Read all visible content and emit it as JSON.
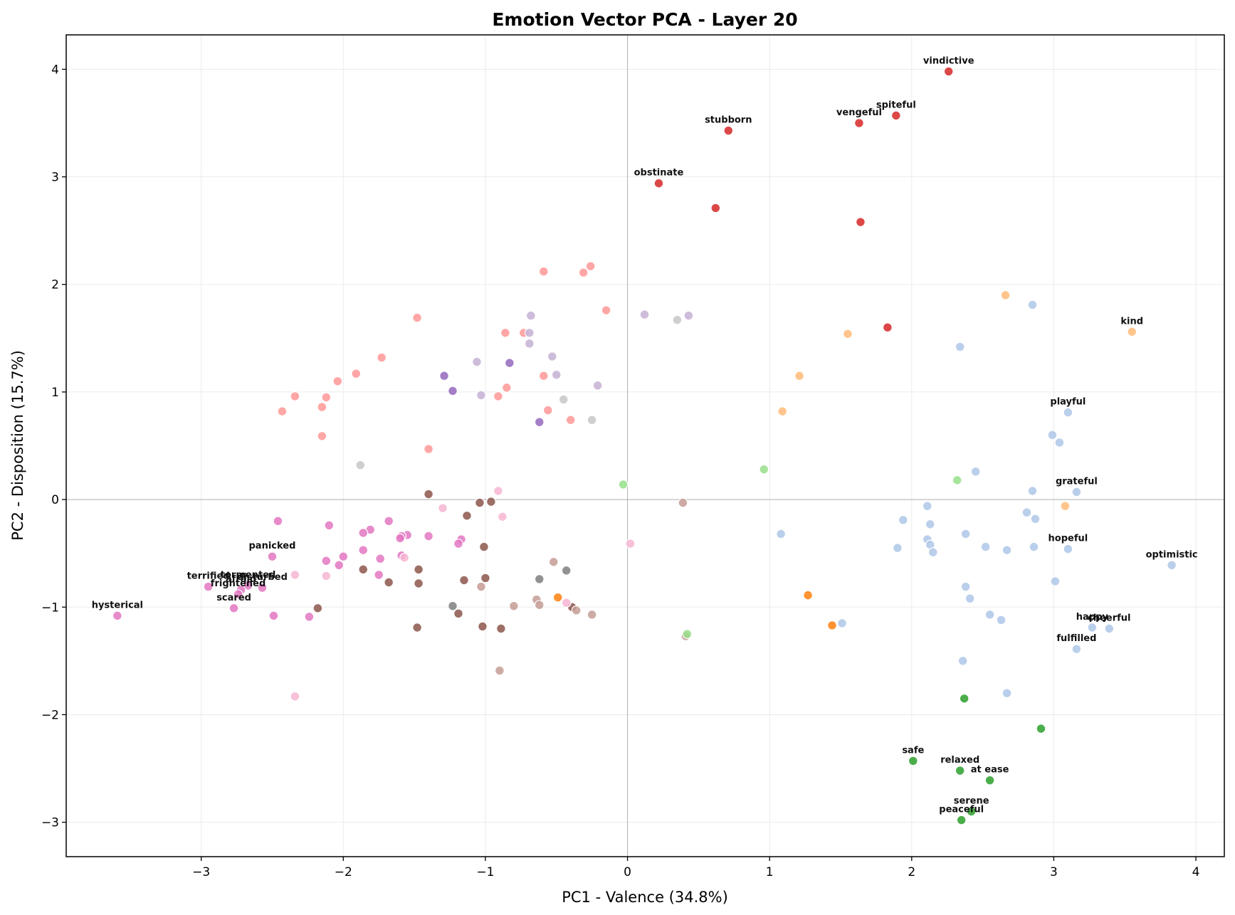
{
  "chart_data": {
    "type": "scatter",
    "title": "Emotion Vector PCA - Layer 20",
    "xlabel": "PC1 - Valence (34.8%)",
    "ylabel": "PC2 - Disposition (15.7%)",
    "xlim": [
      -3.95,
      4.2
    ],
    "ylim": [
      -3.32,
      4.32
    ],
    "xticks": [
      -3,
      -2,
      -1,
      0,
      1,
      2,
      3,
      4
    ],
    "yticks": [
      -3,
      -2,
      -1,
      0,
      1,
      2,
      3,
      4
    ],
    "xtick_labels": [
      "−3",
      "−2",
      "−1",
      "0",
      "1",
      "2",
      "3",
      "4"
    ],
    "ytick_labels": [
      "−3",
      "−2",
      "−1",
      "0",
      "1",
      "2",
      "3",
      "4"
    ],
    "grid": true,
    "colors": {
      "red": "#d62728",
      "salmon": "#ff9896",
      "purple": "#9467bd",
      "lavender": "#c5b0d5",
      "lightgray": "#c7c7c7",
      "gray": "#7f7f7f",
      "brown": "#8c564b",
      "tan": "#c49c94",
      "magenta": "#e377c2",
      "pink": "#f7b6d2",
      "orange": "#ff7f0e",
      "peach": "#ffbb78",
      "lightgreen": "#98df8a",
      "green": "#2ca02c",
      "lightblue": "#aec7e8"
    },
    "points": [
      {
        "x": 2.26,
        "y": 3.98,
        "c": "red",
        "label": "vindictive"
      },
      {
        "x": 1.63,
        "y": 3.5,
        "c": "red",
        "label": "vengeful"
      },
      {
        "x": 1.89,
        "y": 3.57,
        "c": "red",
        "label": "spiteful"
      },
      {
        "x": 0.71,
        "y": 3.43,
        "c": "red",
        "label": "stubborn"
      },
      {
        "x": 0.22,
        "y": 2.94,
        "c": "red",
        "label": "obstinate"
      },
      {
        "x": 0.62,
        "y": 2.71,
        "c": "red"
      },
      {
        "x": 1.64,
        "y": 2.58,
        "c": "red"
      },
      {
        "x": 1.83,
        "y": 1.6,
        "c": "red"
      },
      {
        "x": -0.59,
        "y": 2.12,
        "c": "salmon"
      },
      {
        "x": -0.31,
        "y": 2.11,
        "c": "salmon"
      },
      {
        "x": -0.26,
        "y": 2.17,
        "c": "salmon"
      },
      {
        "x": -0.15,
        "y": 1.76,
        "c": "salmon"
      },
      {
        "x": -1.48,
        "y": 1.69,
        "c": "salmon"
      },
      {
        "x": -0.86,
        "y": 1.55,
        "c": "salmon"
      },
      {
        "x": -0.73,
        "y": 1.55,
        "c": "salmon"
      },
      {
        "x": -1.73,
        "y": 1.32,
        "c": "salmon"
      },
      {
        "x": -1.91,
        "y": 1.17,
        "c": "salmon"
      },
      {
        "x": -2.04,
        "y": 1.1,
        "c": "salmon"
      },
      {
        "x": -2.34,
        "y": 0.96,
        "c": "salmon"
      },
      {
        "x": -2.12,
        "y": 0.95,
        "c": "salmon"
      },
      {
        "x": -2.15,
        "y": 0.86,
        "c": "salmon"
      },
      {
        "x": -2.43,
        "y": 0.82,
        "c": "salmon"
      },
      {
        "x": -2.15,
        "y": 0.59,
        "c": "salmon"
      },
      {
        "x": -1.4,
        "y": 0.47,
        "c": "salmon"
      },
      {
        "x": -0.59,
        "y": 1.15,
        "c": "salmon"
      },
      {
        "x": -0.85,
        "y": 1.04,
        "c": "salmon"
      },
      {
        "x": -0.91,
        "y": 0.96,
        "c": "salmon"
      },
      {
        "x": -0.56,
        "y": 0.83,
        "c": "salmon"
      },
      {
        "x": -0.4,
        "y": 0.74,
        "c": "salmon"
      },
      {
        "x": -1.29,
        "y": 1.15,
        "c": "purple"
      },
      {
        "x": -1.23,
        "y": 1.01,
        "c": "purple"
      },
      {
        "x": -0.83,
        "y": 1.27,
        "c": "purple"
      },
      {
        "x": -0.62,
        "y": 0.72,
        "c": "purple"
      },
      {
        "x": -0.68,
        "y": 1.71,
        "c": "lavender"
      },
      {
        "x": -0.69,
        "y": 1.55,
        "c": "lavender"
      },
      {
        "x": -0.69,
        "y": 1.45,
        "c": "lavender"
      },
      {
        "x": -0.53,
        "y": 1.33,
        "c": "lavender"
      },
      {
        "x": -0.5,
        "y": 1.16,
        "c": "lavender"
      },
      {
        "x": -1.06,
        "y": 1.28,
        "c": "lavender"
      },
      {
        "x": -1.03,
        "y": 0.97,
        "c": "lavender"
      },
      {
        "x": -0.21,
        "y": 1.06,
        "c": "lavender"
      },
      {
        "x": 0.12,
        "y": 1.72,
        "c": "lavender"
      },
      {
        "x": 0.43,
        "y": 1.71,
        "c": "lavender"
      },
      {
        "x": 0.35,
        "y": 1.67,
        "c": "lightgray"
      },
      {
        "x": -0.45,
        "y": 0.93,
        "c": "lightgray"
      },
      {
        "x": -0.25,
        "y": 0.74,
        "c": "lightgray"
      },
      {
        "x": -1.88,
        "y": 0.32,
        "c": "lightgray"
      },
      {
        "x": -0.62,
        "y": -0.74,
        "c": "gray"
      },
      {
        "x": -0.43,
        "y": -0.66,
        "c": "gray"
      },
      {
        "x": -1.23,
        "y": -0.99,
        "c": "gray"
      },
      {
        "x": -1.4,
        "y": 0.05,
        "c": "brown"
      },
      {
        "x": -1.04,
        "y": -0.03,
        "c": "brown"
      },
      {
        "x": -0.96,
        "y": -0.02,
        "c": "brown"
      },
      {
        "x": -1.13,
        "y": -0.15,
        "c": "brown"
      },
      {
        "x": -1.01,
        "y": -0.44,
        "c": "brown"
      },
      {
        "x": -1.86,
        "y": -0.65,
        "c": "brown"
      },
      {
        "x": -1.47,
        "y": -0.65,
        "c": "brown"
      },
      {
        "x": -1.68,
        "y": -0.77,
        "c": "brown"
      },
      {
        "x": -1.47,
        "y": -0.78,
        "c": "brown"
      },
      {
        "x": -1.15,
        "y": -0.75,
        "c": "brown"
      },
      {
        "x": -1.0,
        "y": -0.73,
        "c": "brown"
      },
      {
        "x": -2.18,
        "y": -1.01,
        "c": "brown"
      },
      {
        "x": -1.19,
        "y": -1.06,
        "c": "brown"
      },
      {
        "x": -1.48,
        "y": -1.19,
        "c": "brown"
      },
      {
        "x": -1.02,
        "y": -1.18,
        "c": "brown"
      },
      {
        "x": -0.89,
        "y": -1.2,
        "c": "brown"
      },
      {
        "x": -0.39,
        "y": -1.0,
        "c": "brown"
      },
      {
        "x": 0.39,
        "y": -0.03,
        "c": "tan"
      },
      {
        "x": -0.52,
        "y": -0.58,
        "c": "tan"
      },
      {
        "x": -1.03,
        "y": -0.81,
        "c": "tan"
      },
      {
        "x": -0.64,
        "y": -0.93,
        "c": "tan"
      },
      {
        "x": -0.62,
        "y": -0.98,
        "c": "tan"
      },
      {
        "x": -0.8,
        "y": -0.99,
        "c": "tan"
      },
      {
        "x": -0.36,
        "y": -1.03,
        "c": "tan"
      },
      {
        "x": -0.25,
        "y": -1.07,
        "c": "tan"
      },
      {
        "x": -0.9,
        "y": -1.59,
        "c": "tan"
      },
      {
        "x": 0.41,
        "y": -1.27,
        "c": "tan"
      },
      {
        "x": -2.46,
        "y": -0.2,
        "c": "magenta"
      },
      {
        "x": -2.1,
        "y": -0.24,
        "c": "magenta"
      },
      {
        "x": -1.68,
        "y": -0.2,
        "c": "magenta"
      },
      {
        "x": -1.81,
        "y": -0.28,
        "c": "magenta"
      },
      {
        "x": -1.86,
        "y": -0.31,
        "c": "magenta"
      },
      {
        "x": -1.55,
        "y": -0.33,
        "c": "magenta"
      },
      {
        "x": -1.59,
        "y": -0.34,
        "c": "magenta"
      },
      {
        "x": -1.6,
        "y": -0.36,
        "c": "magenta"
      },
      {
        "x": -1.4,
        "y": -0.34,
        "c": "magenta"
      },
      {
        "x": -1.17,
        "y": -0.37,
        "c": "magenta"
      },
      {
        "x": -1.19,
        "y": -0.41,
        "c": "magenta"
      },
      {
        "x": -1.86,
        "y": -0.47,
        "c": "magenta"
      },
      {
        "x": -1.59,
        "y": -0.52,
        "c": "magenta"
      },
      {
        "x": -2.5,
        "y": -0.53,
        "c": "magenta",
        "label": "panicked"
      },
      {
        "x": -2.0,
        "y": -0.53,
        "c": "magenta"
      },
      {
        "x": -2.12,
        "y": -0.57,
        "c": "magenta"
      },
      {
        "x": -1.74,
        "y": -0.55,
        "c": "magenta"
      },
      {
        "x": -2.03,
        "y": -0.61,
        "c": "magenta"
      },
      {
        "x": -1.75,
        "y": -0.7,
        "c": "magenta"
      },
      {
        "x": -2.57,
        "y": -0.82,
        "c": "magenta",
        "label": "disturbed"
      },
      {
        "x": -2.95,
        "y": -0.81,
        "c": "magenta",
        "label": "terrified"
      },
      {
        "x": -2.67,
        "y": -0.8,
        "c": "magenta",
        "label": "tormented"
      },
      {
        "x": -2.72,
        "y": -0.84,
        "c": "magenta",
        "label": "afraid"
      },
      {
        "x": -2.74,
        "y": -0.88,
        "c": "magenta",
        "label": "frightened"
      },
      {
        "x": -2.77,
        "y": -1.01,
        "c": "magenta",
        "label": "scared"
      },
      {
        "x": -3.59,
        "y": -1.08,
        "c": "magenta",
        "label": "hysterical"
      },
      {
        "x": -2.49,
        "y": -1.08,
        "c": "magenta"
      },
      {
        "x": -2.24,
        "y": -1.09,
        "c": "magenta"
      },
      {
        "x": -0.91,
        "y": 0.08,
        "c": "pink"
      },
      {
        "x": -1.3,
        "y": -0.08,
        "c": "pink"
      },
      {
        "x": -0.88,
        "y": -0.16,
        "c": "pink"
      },
      {
        "x": 0.02,
        "y": -0.41,
        "c": "pink"
      },
      {
        "x": -1.57,
        "y": -0.54,
        "c": "pink"
      },
      {
        "x": -2.34,
        "y": -0.7,
        "c": "pink"
      },
      {
        "x": -2.12,
        "y": -0.71,
        "c": "pink"
      },
      {
        "x": -0.43,
        "y": -0.96,
        "c": "pink"
      },
      {
        "x": -2.34,
        "y": -1.83,
        "c": "pink"
      },
      {
        "x": -0.49,
        "y": -0.91,
        "c": "orange"
      },
      {
        "x": 1.27,
        "y": -0.89,
        "c": "orange"
      },
      {
        "x": 1.44,
        "y": -1.17,
        "c": "orange"
      },
      {
        "x": 2.66,
        "y": 1.9,
        "c": "peach"
      },
      {
        "x": 1.55,
        "y": 1.54,
        "c": "peach"
      },
      {
        "x": 1.21,
        "y": 1.15,
        "c": "peach"
      },
      {
        "x": 1.09,
        "y": 0.82,
        "c": "peach"
      },
      {
        "x": 3.55,
        "y": 1.56,
        "c": "peach",
        "label": "kind"
      },
      {
        "x": 3.08,
        "y": -0.06,
        "c": "peach"
      },
      {
        "x": -0.03,
        "y": 0.14,
        "c": "lightgreen"
      },
      {
        "x": 0.96,
        "y": 0.28,
        "c": "lightgreen"
      },
      {
        "x": 2.32,
        "y": 0.18,
        "c": "lightgreen"
      },
      {
        "x": 0.42,
        "y": -1.25,
        "c": "lightgreen"
      },
      {
        "x": 2.37,
        "y": -1.85,
        "c": "green"
      },
      {
        "x": 2.91,
        "y": -2.13,
        "c": "green"
      },
      {
        "x": 2.01,
        "y": -2.43,
        "c": "green",
        "label": "safe"
      },
      {
        "x": 2.34,
        "y": -2.52,
        "c": "green",
        "label": "relaxed"
      },
      {
        "x": 2.55,
        "y": -2.61,
        "c": "green",
        "label": "at ease"
      },
      {
        "x": 2.42,
        "y": -2.9,
        "c": "green",
        "label": "serene"
      },
      {
        "x": 2.35,
        "y": -2.98,
        "c": "green",
        "label": "peaceful"
      },
      {
        "x": 2.85,
        "y": 1.81,
        "c": "lightblue"
      },
      {
        "x": 2.34,
        "y": 1.42,
        "c": "lightblue"
      },
      {
        "x": 3.1,
        "y": 0.81,
        "c": "lightblue",
        "label": "playful"
      },
      {
        "x": 2.99,
        "y": 0.6,
        "c": "lightblue"
      },
      {
        "x": 3.04,
        "y": 0.53,
        "c": "lightblue"
      },
      {
        "x": 2.45,
        "y": 0.26,
        "c": "lightblue"
      },
      {
        "x": 3.16,
        "y": 0.07,
        "c": "lightblue",
        "label": "grateful"
      },
      {
        "x": 2.85,
        "y": 0.08,
        "c": "lightblue"
      },
      {
        "x": 2.11,
        "y": -0.06,
        "c": "lightblue"
      },
      {
        "x": 2.81,
        "y": -0.12,
        "c": "lightblue"
      },
      {
        "x": 2.87,
        "y": -0.18,
        "c": "lightblue"
      },
      {
        "x": 1.94,
        "y": -0.19,
        "c": "lightblue"
      },
      {
        "x": 2.13,
        "y": -0.23,
        "c": "lightblue"
      },
      {
        "x": 1.08,
        "y": -0.32,
        "c": "lightblue"
      },
      {
        "x": 2.38,
        "y": -0.32,
        "c": "lightblue"
      },
      {
        "x": 2.11,
        "y": -0.37,
        "c": "lightblue"
      },
      {
        "x": 2.13,
        "y": -0.42,
        "c": "lightblue"
      },
      {
        "x": 2.15,
        "y": -0.49,
        "c": "lightblue"
      },
      {
        "x": 1.9,
        "y": -0.45,
        "c": "lightblue"
      },
      {
        "x": 2.52,
        "y": -0.44,
        "c": "lightblue"
      },
      {
        "x": 2.67,
        "y": -0.47,
        "c": "lightblue"
      },
      {
        "x": 2.86,
        "y": -0.44,
        "c": "lightblue"
      },
      {
        "x": 3.1,
        "y": -0.46,
        "c": "lightblue",
        "label": "hopeful"
      },
      {
        "x": 3.83,
        "y": -0.61,
        "c": "lightblue",
        "label": "optimistic"
      },
      {
        "x": 3.01,
        "y": -0.76,
        "c": "lightblue"
      },
      {
        "x": 2.38,
        "y": -0.81,
        "c": "lightblue"
      },
      {
        "x": 2.41,
        "y": -0.92,
        "c": "lightblue"
      },
      {
        "x": 2.55,
        "y": -1.07,
        "c": "lightblue"
      },
      {
        "x": 2.63,
        "y": -1.12,
        "c": "lightblue"
      },
      {
        "x": 1.51,
        "y": -1.15,
        "c": "lightblue"
      },
      {
        "x": 3.27,
        "y": -1.19,
        "c": "lightblue",
        "label": "happy"
      },
      {
        "x": 3.39,
        "y": -1.2,
        "c": "lightblue",
        "label": "cheerful"
      },
      {
        "x": 3.16,
        "y": -1.39,
        "c": "lightblue",
        "label": "fulfilled"
      },
      {
        "x": 2.36,
        "y": -1.5,
        "c": "lightblue"
      },
      {
        "x": 2.67,
        "y": -1.8,
        "c": "lightblue"
      }
    ]
  }
}
